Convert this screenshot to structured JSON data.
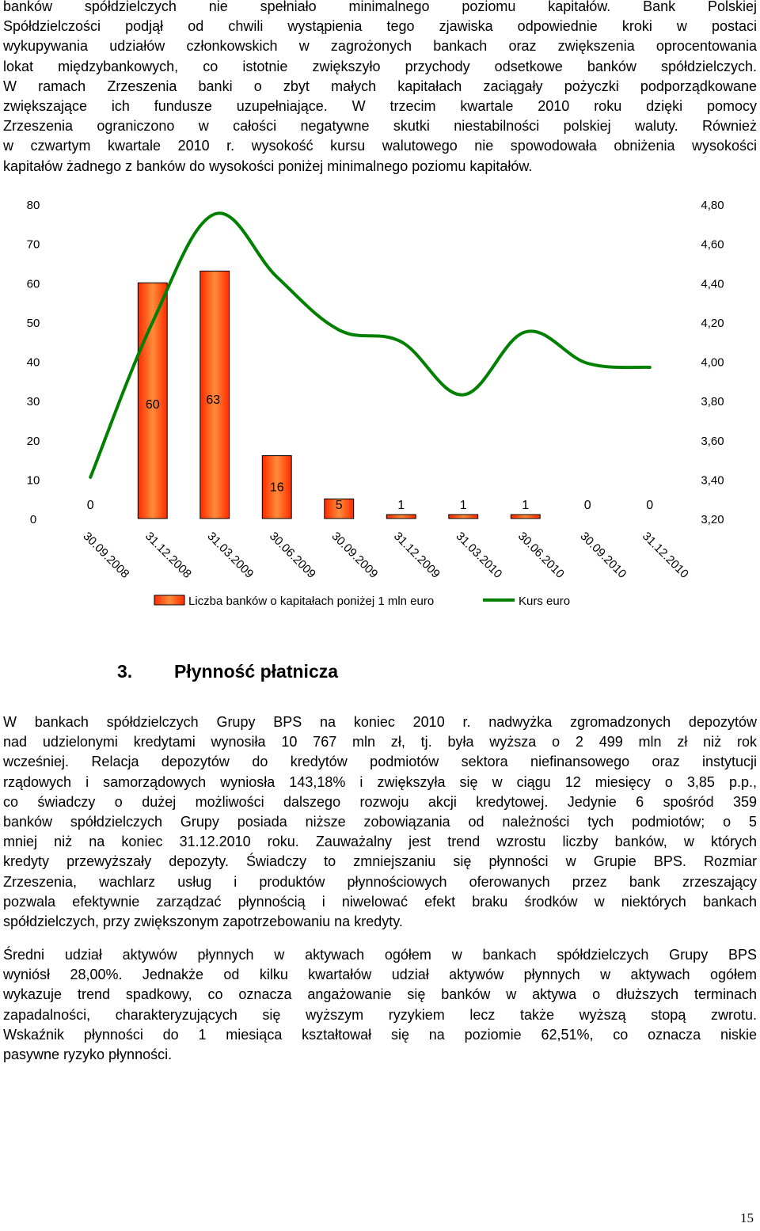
{
  "paragraph1": {
    "lines": [
      "banków spółdzielczych nie spełniało minimalnego poziomu kapitałów. Bank Polskiej",
      "Spółdzielczości podjął od chwili wystąpienia tego zjawiska odpowiednie kroki w postaci",
      "wykupywania udziałów członkowskich w zagrożonych bankach oraz zwiększenia oprocentowania",
      "lokat międzybankowych, co istotnie zwiększyło przychody odsetkowe banków spółdzielczych.",
      "W ramach Zrzeszenia banki o zbyt małych kapitałach zaciągały pożyczki podporządkowane",
      "zwiększające ich fundusze uzupełniające. W trzecim kwartale 2010 roku dzięki pomocy",
      "Zrzeszenia ograniczono w całości negatywne skutki niestabilności polskiej waluty. Również",
      "w czwartym kwartale 2010 r. wysokość kursu walutowego nie spowodowała obniżenia wysokości",
      "kapitałów żadnego z banków do wysokości poniżej minimalnego poziomu kapitałów."
    ]
  },
  "section": {
    "number": "3.",
    "title": "Płynność płatnicza"
  },
  "paragraph2": {
    "lines": [
      "W bankach spółdzielczych Grupy BPS na koniec 2010 r. nadwyżka zgromadzonych depozytów",
      "nad udzielonymi kredytami wynosiła 10 767 mln zł, tj. była wyższa o 2 499 mln zł niż rok",
      "wcześniej. Relacja depozytów do kredytów podmiotów sektora niefinansowego oraz instytucji",
      "rządowych i samorządowych wyniosła 143,18% i zwiększyła się w ciągu 12 miesięcy o 3,85 p.p.,",
      "co świadczy o dużej możliwości dalszego rozwoju akcji kredytowej. Jedynie 6 spośród 359",
      "banków spółdzielczych Grupy posiada niższe zobowiązania od należności tych podmiotów; o 5",
      "mniej niż na koniec 31.12.2010 roku. Zauważalny jest trend wzrostu liczby banków, w których",
      "kredyty przewyższały depozyty. Świadczy to zmniejszaniu się płynności w Grupie BPS. Rozmiar",
      "Zrzeszenia, wachlarz usług i produktów płynnościowych oferowanych przez bank zrzeszający",
      "pozwala efektywnie zarządzać płynnością i niwelować efekt braku środków w niektórych bankach",
      "spółdzielczych, przy zwiększonym zapotrzebowaniu na kredyty."
    ]
  },
  "paragraph3": {
    "lines": [
      "Średni udział aktywów płynnych w aktywach ogółem w bankach spółdzielczych Grupy BPS",
      "wyniósł 28,00%. Jednakże od kilku kwartałów udział aktywów płynnych w aktywach ogółem",
      "wykazuje trend spadkowy, co oznacza angażowanie się banków w aktywa o dłuższych terminach",
      "zapadalności, charakteryzujących się wyższym ryzykiem lecz także wyższą stopą zwrotu.",
      "Wskaźnik płynności do 1 miesiąca kształtował się na poziomie 62,51%, co oznacza niskie",
      "pasywne ryzyko płynności."
    ]
  },
  "page_number": "15",
  "chart_data": {
    "type": "bar",
    "categories": [
      "30.09.2008",
      "31.12.2008",
      "31.03.2009",
      "30.06.2009",
      "30.09.2009",
      "31.12.2009",
      "31.03.2010",
      "30.06.2010",
      "30.09.2010",
      "31.12.2010"
    ],
    "series": [
      {
        "name": "Liczba banków o kapitałach poniżej 1 mln euro",
        "type": "bar",
        "axis": "left",
        "values": [
          0,
          60,
          63,
          16,
          5,
          1,
          1,
          1,
          0,
          0
        ],
        "data_labels": [
          "0",
          "60",
          "63",
          "16",
          "5",
          "1",
          "1",
          "1",
          "0",
          "0"
        ],
        "color": "#ff4500"
      },
      {
        "name": "Kurs euro",
        "type": "line",
        "axis": "right",
        "values": [
          3.41,
          4.2,
          4.75,
          4.43,
          4.16,
          4.1,
          3.83,
          4.15,
          3.99,
          3.97
        ],
        "color": "#008000"
      }
    ],
    "y_left": {
      "min": 0,
      "max": 80,
      "ticks": [
        "0",
        "10",
        "20",
        "30",
        "40",
        "50",
        "60",
        "70",
        "80"
      ]
    },
    "y_right": {
      "min": 3.2,
      "max": 4.8,
      "ticks": [
        "3,20",
        "3,40",
        "3,60",
        "3,80",
        "4,00",
        "4,20",
        "4,40",
        "4,60",
        "4,80"
      ]
    },
    "grid": false,
    "legend_position": "bottom"
  }
}
